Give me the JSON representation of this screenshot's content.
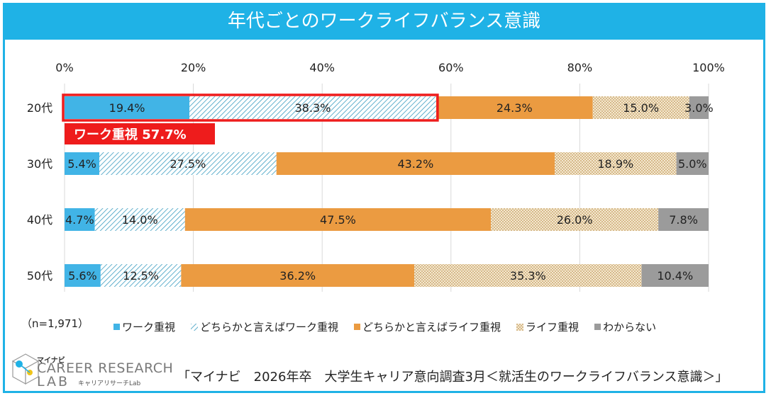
{
  "title": "年代ごとのワークライフバランス意識",
  "sample_note": "（n=1,971）",
  "source": "「マイナビ　2026年卒　大学生キャリア意向調査3月＜就活生のワークライフバランス意識＞」",
  "logo": {
    "brand_small": "マイナビ",
    "line1": "CAREER RESEARCH",
    "line2": "LAB",
    "subtitle": "キャリアリサーチLab"
  },
  "highlight": {
    "label": "ワーク重視 57.7%",
    "row": "20代",
    "color": "#ee1c1c"
  },
  "colors": {
    "blue": "#41b4e6",
    "hatch": "#3a9cc0",
    "orange": "#eb9b41",
    "beige": "#e2cba0",
    "gray": "#9b9b9b",
    "frame": "#1fb2e6"
  },
  "chart_data": {
    "type": "bar",
    "orientation": "horizontal",
    "stacked": true,
    "title": "年代ごとのワークライフバランス意識",
    "categories": [
      "20代",
      "30代",
      "40代",
      "50代"
    ],
    "x_ticks": [
      "0%",
      "20%",
      "40%",
      "60%",
      "80%",
      "100%"
    ],
    "xlim": [
      0,
      100
    ],
    "series": [
      {
        "name": "ワーク重視",
        "values": [
          19.4,
          5.4,
          4.7,
          5.6
        ],
        "labels": [
          "19.4%",
          "5.4%",
          "4.7%",
          "5.6%"
        ],
        "fill": "solid-blue"
      },
      {
        "name": "どちらかと言えばワーク重視",
        "values": [
          38.3,
          27.5,
          14.0,
          12.5
        ],
        "labels": [
          "38.3%",
          "27.5%",
          "14.0%",
          "12.5%"
        ],
        "fill": "hatch-blue"
      },
      {
        "name": "どちらかと言えばライフ重視",
        "values": [
          24.3,
          43.2,
          47.5,
          36.2
        ],
        "labels": [
          "24.3%",
          "43.2%",
          "47.5%",
          "36.2%"
        ],
        "fill": "solid-orange"
      },
      {
        "name": "ライフ重視",
        "values": [
          15.0,
          18.9,
          26.0,
          35.3
        ],
        "labels": [
          "15.0%",
          "18.9%",
          "26.0%",
          "35.3%"
        ],
        "fill": "dots-beige"
      },
      {
        "name": "わからない",
        "values": [
          3.0,
          5.0,
          7.8,
          10.4
        ],
        "labels": [
          "3.0%",
          "5.0%",
          "7.8%",
          "10.4%"
        ],
        "fill": "solid-gray"
      }
    ],
    "legend_position": "bottom"
  }
}
